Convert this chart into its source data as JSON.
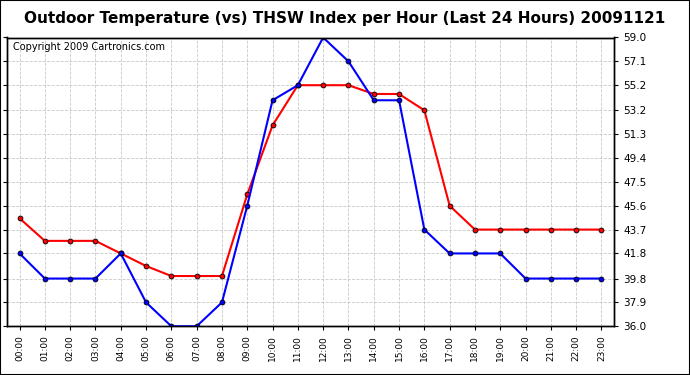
{
  "title": "Outdoor Temperature (vs) THSW Index per Hour (Last 24 Hours) 20091121",
  "copyright": "Copyright 2009 Cartronics.com",
  "x_labels": [
    "00:00",
    "01:00",
    "02:00",
    "03:00",
    "04:00",
    "05:00",
    "06:00",
    "07:00",
    "08:00",
    "09:00",
    "10:00",
    "11:00",
    "12:00",
    "13:00",
    "14:00",
    "15:00",
    "16:00",
    "17:00",
    "18:00",
    "19:00",
    "20:00",
    "21:00",
    "22:00",
    "23:00"
  ],
  "temp_data": [
    41.8,
    39.8,
    39.8,
    39.8,
    41.8,
    37.9,
    36.0,
    36.0,
    37.9,
    45.6,
    54.0,
    55.2,
    59.0,
    57.1,
    54.0,
    54.0,
    43.7,
    41.8,
    41.8,
    41.8,
    39.8,
    39.8,
    39.8,
    39.8
  ],
  "thsw_data": [
    44.6,
    42.8,
    42.8,
    42.8,
    41.8,
    40.8,
    40.0,
    40.0,
    40.0,
    46.5,
    52.0,
    55.2,
    55.2,
    55.2,
    54.5,
    54.5,
    53.2,
    45.6,
    43.7,
    43.7,
    43.7,
    43.7,
    43.7,
    43.7
  ],
  "ylim": [
    36.0,
    59.0
  ],
  "yticks": [
    36.0,
    37.9,
    39.8,
    41.8,
    43.7,
    45.6,
    47.5,
    49.4,
    51.3,
    53.2,
    55.2,
    57.1,
    59.0
  ],
  "temp_color": "#0000FF",
  "thsw_color": "#FF0000",
  "bg_color": "#FFFFFF",
  "plot_bg_color": "#FFFFFF",
  "grid_color": "#BBBBBB",
  "title_color": "#000000",
  "title_fontsize": 11,
  "copyright_fontsize": 7
}
